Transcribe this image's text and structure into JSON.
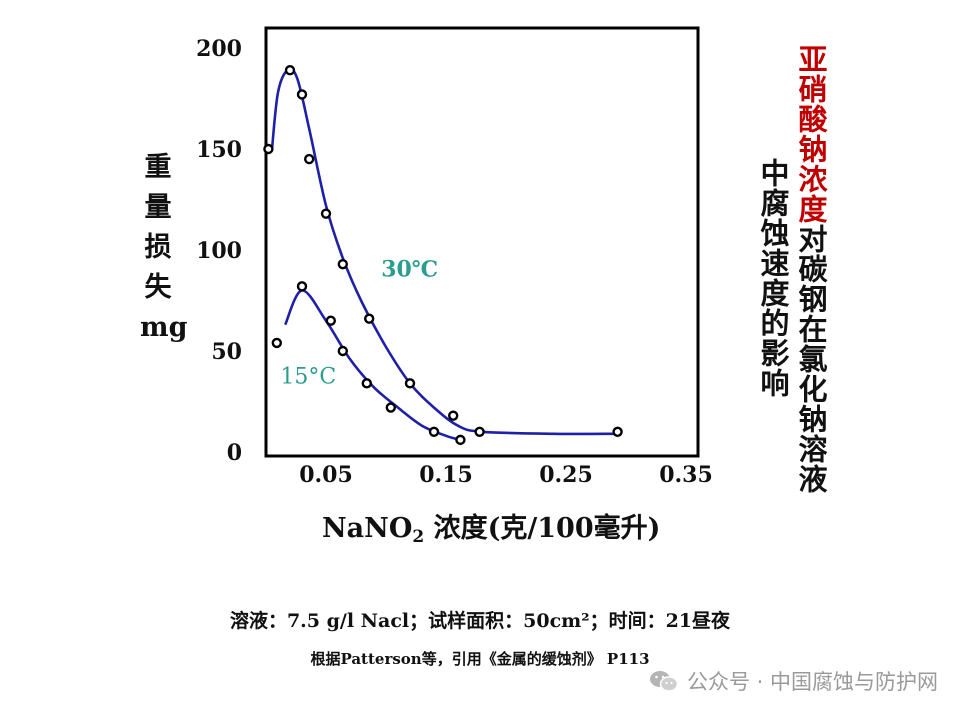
{
  "chart_data": {
    "type": "line",
    "xlabel_main": "NaNO",
    "xlabel_sub": "2",
    "xlabel_rest": " 浓度(克/100毫升)",
    "ylabel": "重\n量\n损\n失\nmg",
    "xlim": [
      0.0,
      0.36
    ],
    "ylim": [
      0,
      210
    ],
    "x_ticks": [
      "0.05",
      "0.15",
      "0.25",
      "0.35"
    ],
    "y_ticks": [
      "200",
      "150",
      "100",
      "50",
      "0"
    ],
    "grid": false,
    "series": [
      {
        "name": "30℃",
        "color": "#1f20a8",
        "label_color": "#2a9d8f",
        "points": [
          [
            0.002,
            150
          ],
          [
            0.02,
            189
          ],
          [
            0.03,
            177
          ],
          [
            0.036,
            145
          ],
          [
            0.05,
            118
          ],
          [
            0.064,
            93
          ],
          [
            0.086,
            66
          ],
          [
            0.12,
            34
          ],
          [
            0.156,
            18
          ],
          [
            0.178,
            10
          ],
          [
            0.293,
            10
          ]
        ],
        "curve": [
          [
            0.005,
            150
          ],
          [
            0.01,
            178
          ],
          [
            0.018,
            189
          ],
          [
            0.026,
            185
          ],
          [
            0.036,
            160
          ],
          [
            0.05,
            122
          ],
          [
            0.064,
            96
          ],
          [
            0.08,
            74
          ],
          [
            0.1,
            52
          ],
          [
            0.12,
            34
          ],
          [
            0.14,
            22
          ],
          [
            0.16,
            13
          ],
          [
            0.18,
            10
          ],
          [
            0.24,
            9
          ],
          [
            0.293,
            9
          ]
        ]
      },
      {
        "name": "15°C",
        "color": "#1f20a8",
        "label_color": "#2a9d8f",
        "points": [
          [
            0.009,
            54
          ],
          [
            0.03,
            82
          ],
          [
            0.054,
            65
          ],
          [
            0.064,
            50
          ],
          [
            0.084,
            34
          ],
          [
            0.104,
            22
          ],
          [
            0.14,
            10
          ],
          [
            0.162,
            6
          ]
        ],
        "curve": [
          [
            0.016,
            63
          ],
          [
            0.03,
            80
          ],
          [
            0.05,
            65
          ],
          [
            0.07,
            46
          ],
          [
            0.09,
            32
          ],
          [
            0.11,
            22
          ],
          [
            0.13,
            13
          ],
          [
            0.15,
            8
          ],
          [
            0.162,
            6
          ]
        ]
      }
    ]
  },
  "title": {
    "highlight": "亚硝酸钠浓度",
    "rest": "对碳钢在氯化钠溶液",
    "second": "中腐蚀速度的影响"
  },
  "footnote": {
    "line1": "溶液：7.5 g/l Nacl；试样面积：50cm²；时间：21昼夜",
    "line2": "根据Patterson等，引用《金属的缓蚀剂》 P113"
  },
  "watermark": {
    "icon": "wechat-icon",
    "text": "公众号 · 中国腐蚀与防护网"
  }
}
